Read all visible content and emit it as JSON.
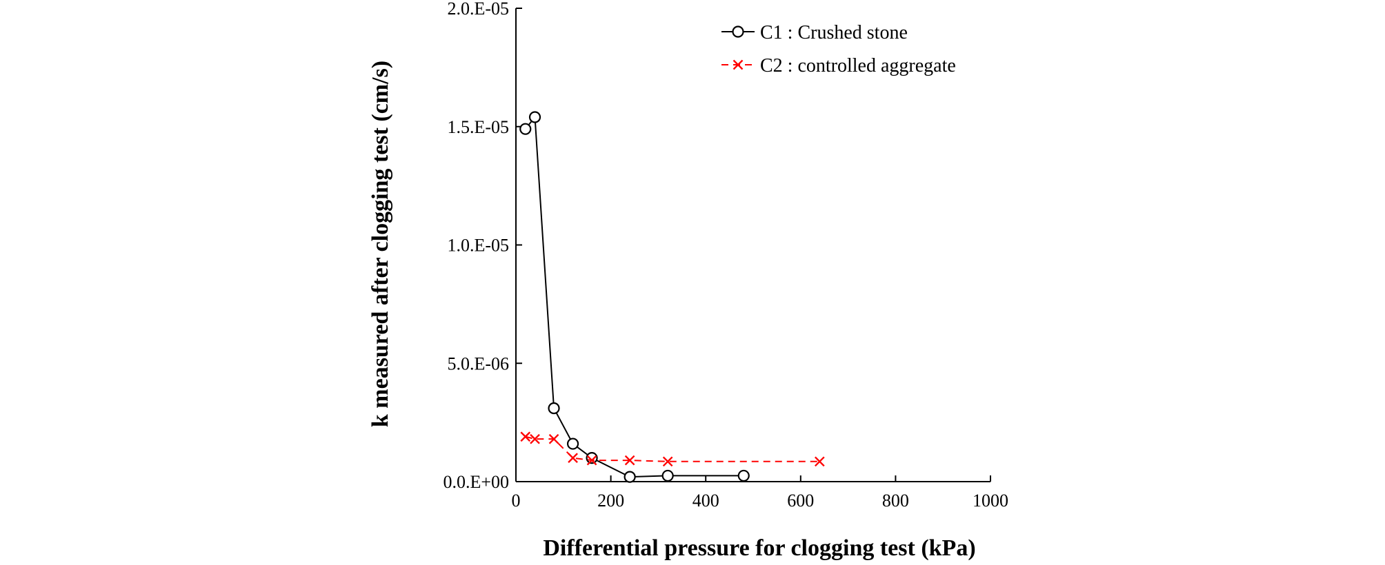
{
  "chart_data": {
    "type": "line",
    "xlabel": "Differential pressure  for clogging test (kPa)",
    "ylabel": "k measured  after clogging test (cm/s)",
    "xlim": [
      0,
      1000
    ],
    "ylim": [
      0,
      2e-05
    ],
    "x_ticks": [
      0,
      200,
      400,
      600,
      800,
      1000
    ],
    "y_ticks": [
      0,
      5e-06,
      1e-05,
      1.5e-05,
      2e-05
    ],
    "x_tick_labels": [
      "0",
      "200",
      "400",
      "600",
      "800",
      "1000"
    ],
    "y_tick_labels": [
      "0.0.E+00",
      "5.0.E-06",
      "1.0.E-05",
      "1.5.E-05",
      "2.0.E-05"
    ],
    "grid": false,
    "legend_position": "top-right",
    "series": [
      {
        "name": "C1 : Crushed stone",
        "color": "#000000",
        "marker": "circle",
        "line_style": "solid",
        "x": [
          20,
          40,
          80,
          120,
          160,
          240,
          320,
          480
        ],
        "y": [
          1.49e-05,
          1.54e-05,
          3.1e-06,
          1.6e-06,
          1e-06,
          2e-07,
          2.5e-07,
          2.5e-07
        ]
      },
      {
        "name": "C2 : controlled aggregate",
        "color": "#ff0000",
        "marker": "x",
        "line_style": "dashed",
        "x": [
          20,
          40,
          80,
          120,
          160,
          240,
          320,
          640
        ],
        "y": [
          1.9e-06,
          1.8e-06,
          1.8e-06,
          1e-06,
          9e-07,
          9e-07,
          8.5e-07,
          8.5e-07
        ]
      }
    ]
  }
}
